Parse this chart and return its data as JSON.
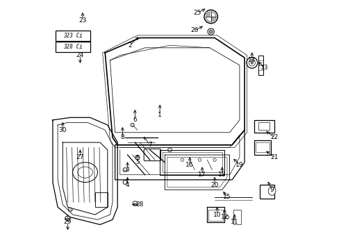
{
  "bg_color": "#ffffff",
  "line_color": "#000000",
  "figsize": [
    4.89,
    3.6
  ],
  "dpi": 100,
  "parts_labels": {
    "1": [
      0.46,
      0.46,
      0,
      0.05
    ],
    "2": [
      0.34,
      0.18,
      0.04,
      0.04
    ],
    "3": [
      0.33,
      0.68,
      0,
      0.04
    ],
    "4": [
      0.33,
      0.74,
      0,
      0.04
    ],
    "5": [
      0.37,
      0.65,
      0,
      0.04
    ],
    "6": [
      0.36,
      0.48,
      0,
      0.05
    ],
    "7": [
      0.42,
      0.58,
      -0.03,
      0.04
    ],
    "8": [
      0.31,
      0.55,
      0,
      0.05
    ],
    "9": [
      0.91,
      0.76,
      -0.02,
      0.04
    ],
    "10": [
      0.69,
      0.86,
      0,
      0.04
    ],
    "11": [
      0.76,
      0.89,
      0,
      0.04
    ],
    "12": [
      0.72,
      0.87,
      0,
      0.04
    ],
    "13": [
      0.88,
      0.27,
      -0.03,
      0.03
    ],
    "14": [
      0.83,
      0.24,
      0,
      0.04
    ],
    "15": [
      0.73,
      0.79,
      -0.02,
      0.03
    ],
    "16": [
      0.58,
      0.66,
      0,
      0.04
    ],
    "17": [
      0.63,
      0.7,
      0,
      0.04
    ],
    "18": [
      0.71,
      0.7,
      0,
      0.04
    ],
    "19": [
      0.78,
      0.66,
      -0.03,
      0.03
    ],
    "20": [
      0.68,
      0.74,
      0,
      0.04
    ],
    "21": [
      0.92,
      0.63,
      -0.04,
      0.03
    ],
    "22": [
      0.92,
      0.55,
      -0.04,
      0.03
    ],
    "23": [
      0.15,
      0.08,
      0,
      0.04
    ],
    "24": [
      0.14,
      0.22,
      0,
      -0.04
    ],
    "25": [
      0.61,
      0.05,
      0.04,
      0.02
    ],
    "26": [
      0.6,
      0.12,
      0.04,
      0.02
    ],
    "27": [
      0.14,
      0.63,
      0,
      0.04
    ],
    "28": [
      0.38,
      0.82,
      -0.04,
      0
    ],
    "29": [
      0.09,
      0.89,
      0,
      -0.04
    ],
    "30": [
      0.07,
      0.52,
      0,
      0.04
    ]
  }
}
